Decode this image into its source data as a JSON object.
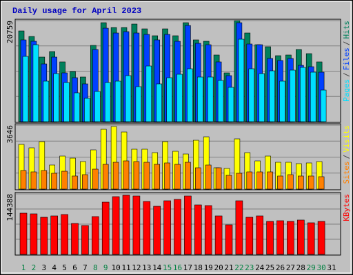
{
  "chart_data": [
    {
      "type": "bar",
      "title": "Daily usage for April 2023",
      "ylim": [
        0,
        20759
      ],
      "yticks": [
        20759
      ],
      "legend_separator": "/",
      "series": [
        {
          "name": "Hits",
          "color": "#00805c",
          "values": [
            18640,
            17510,
            13274,
            14404,
            12286,
            10309,
            9179,
            15675,
            20335,
            19347,
            19347,
            20053,
            19064,
            17652,
            19064,
            17652,
            20335,
            16805,
            16522,
            13698,
            10026,
            20759,
            18217,
            15816,
            15393,
            13557,
            13698,
            14828,
            13980,
            12286,
            null
          ]
        },
        {
          "name": "Files",
          "color": "#0040ff",
          "values": [
            16803,
            16520,
            11861,
            13273,
            10025,
            9037,
            7766,
            14826,
            19203,
            18215,
            18497,
            18215,
            17932,
            16803,
            17932,
            16520,
            19768,
            16097,
            15814,
            12284,
            9460,
            20333,
            15956,
            15814,
            12990,
            12567,
            12990,
            11578,
            11296,
            10166,
            null
          ]
        },
        {
          "name": "Pages",
          "color": "#00e0ff",
          "values": [
            13414,
            15814,
            8331,
            9884,
            8048,
            5930,
            4801,
            6213,
            8048,
            8331,
            9460,
            7201,
            11437,
            7766,
            9037,
            9743,
            10872,
            9178,
            9178,
            8472,
            7060,
            16944,
            10872,
            9884,
            10449,
            8331,
            10590,
            11155,
            10166,
            6495,
            null
          ]
        }
      ]
    },
    {
      "type": "bar",
      "ylim": [
        0,
        3646
      ],
      "yticks": [
        3646
      ],
      "legend_separator": "/",
      "series": [
        {
          "name": "Visits",
          "color": "#ffff00",
          "values": [
            2548,
            2352,
            2705,
            1372,
            1882,
            1764,
            1568,
            2234,
            3410,
            3567,
            3254,
            2274,
            2274,
            2078,
            2705,
            2156,
            1999,
            2783,
            2979,
            1215,
            1176,
            2862,
            2078,
            1607,
            1882,
            1529,
            1529,
            1450,
            1490,
            1568,
            null
          ]
        },
        {
          "name": "Sites",
          "color": "#ff8000",
          "values": [
            1058,
            980,
            1058,
            902,
            1019,
            745,
            823,
            1137,
            1411,
            1529,
            1607,
            1568,
            1529,
            1411,
            1490,
            1411,
            1529,
            1215,
            1372,
            1215,
            784,
            902,
            980,
            980,
            980,
            745,
            823,
            745,
            745,
            706,
            null
          ]
        }
      ]
    },
    {
      "type": "bar",
      "ylim": [
        0,
        144388
      ],
      "yticks": [
        144388
      ],
      "categories": [
        "1",
        "2",
        "3",
        "4",
        "5",
        "6",
        "7",
        "8",
        "9",
        "10",
        "11",
        "12",
        "13",
        "14",
        "15",
        "16",
        "17",
        "18",
        "19",
        "20",
        "21",
        "22",
        "23",
        "24",
        "25",
        "26",
        "27",
        "28",
        "29",
        "30",
        "31"
      ],
      "category_colors": [
        "#008040",
        "#008040",
        "#000000",
        "#000000",
        "#000000",
        "#000000",
        "#000000",
        "#008040",
        "#008040",
        "#000000",
        "#000000",
        "#000000",
        "#000000",
        "#000000",
        "#008040",
        "#008040",
        "#000000",
        "#000000",
        "#000000",
        "#000000",
        "#000000",
        "#008040",
        "#008040",
        "#000000",
        "#000000",
        "#000000",
        "#000000",
        "#000000",
        "#008040",
        "#008040",
        "#000000"
      ],
      "series": [
        {
          "name": "KBytes",
          "color": "#ff0000",
          "values": [
            98448,
            96807,
            88603,
            91885,
            95166,
            73836,
            68914,
            90244,
            124701,
            137827,
            141109,
            139468,
            126342,
            114856,
            127982,
            131264,
            139468,
            118138,
            116497,
            91885,
            70554,
            127982,
            88603,
            91885,
            78758,
            80399,
            78758,
            82040,
            75477,
            78758,
            null
          ]
        }
      ]
    }
  ]
}
